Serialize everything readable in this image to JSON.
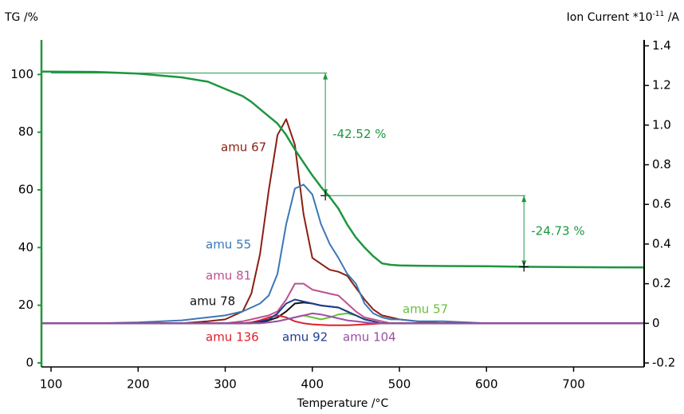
{
  "chart_data": {
    "type": "line",
    "title_left": "TG /%",
    "y2label": {
      "base": "Ion Current *10",
      "sup": "-11",
      "unit": " /A"
    },
    "xlabel": "Temperature /°C",
    "x": [
      90,
      150,
      200,
      250,
      280,
      300,
      320,
      330,
      340,
      350,
      360,
      370,
      380,
      390,
      400,
      410,
      420,
      430,
      440,
      450,
      460,
      470,
      480,
      490,
      500,
      520,
      550,
      600,
      650,
      700,
      780
    ],
    "xlim": [
      89,
      781
    ],
    "xticks": [
      100,
      200,
      300,
      400,
      500,
      600,
      700
    ],
    "ylim": [
      -1.4,
      112
    ],
    "yticks": [
      0,
      20,
      40,
      60,
      80,
      100
    ],
    "y2lim": [
      -0.22,
      1.43
    ],
    "y2ticks": [
      -0.2,
      0,
      0.2,
      0.4,
      0.6,
      0.8,
      {
        "value": 1,
        "label": "1.0"
      },
      1.2,
      1.4
    ],
    "left_axis_color": "#22963c",
    "series": [
      {
        "name": "TG",
        "color": "#1e9640",
        "axis": "y",
        "values": [
          101,
          100.9,
          100.3,
          99,
          97.5,
          95,
          92.5,
          90.5,
          88,
          85.5,
          83,
          79,
          74,
          69.5,
          65,
          61,
          57.5,
          53.5,
          48,
          43.5,
          40,
          37,
          34.5,
          34,
          33.8,
          33.7,
          33.6,
          33.5,
          33.3,
          33.2,
          33.1
        ]
      },
      {
        "name": "amu 67",
        "color": "#8b1f12",
        "axis": "y2",
        "values": [
          0,
          0,
          0,
          0,
          0.01,
          0.02,
          0.06,
          0.15,
          0.35,
          0.67,
          0.95,
          1.03,
          0.9,
          0.55,
          0.33,
          0.3,
          0.27,
          0.26,
          0.24,
          0.18,
          0.12,
          0.07,
          0.04,
          0.03,
          0.02,
          0.01,
          0,
          0,
          0,
          0,
          0
        ]
      },
      {
        "name": "amu 55",
        "color": "#3a78b5",
        "axis": "y2",
        "values": [
          0,
          0,
          0.005,
          0.015,
          0.03,
          0.04,
          0.06,
          0.08,
          0.1,
          0.14,
          0.25,
          0.5,
          0.68,
          0.7,
          0.65,
          0.5,
          0.4,
          0.33,
          0.25,
          0.2,
          0.1,
          0.05,
          0.03,
          0.02,
          0.02,
          0.01,
          0.01,
          0,
          0,
          0,
          0
        ]
      },
      {
        "name": "amu 81",
        "color": "#c0508f",
        "axis": "y2",
        "values": [
          0,
          0,
          0,
          0,
          0,
          0,
          0.01,
          0.02,
          0.03,
          0.04,
          0.06,
          0.12,
          0.2,
          0.2,
          0.17,
          0.16,
          0.15,
          0.14,
          0.1,
          0.06,
          0.03,
          0.02,
          0.01,
          0,
          0,
          0,
          0,
          0,
          0,
          0,
          0
        ]
      },
      {
        "name": "amu 78",
        "color": "#111111",
        "axis": "y2",
        "values": [
          0,
          0,
          0,
          0,
          0,
          0,
          0,
          0,
          0.005,
          0.015,
          0.03,
          0.06,
          0.1,
          0.105,
          0.1,
          0.09,
          0.085,
          0.08,
          0.06,
          0.04,
          0.02,
          0.01,
          0,
          0,
          0,
          0,
          0,
          0,
          0,
          0,
          0
        ]
      },
      {
        "name": "amu 57",
        "color": "#6abf3c",
        "axis": "y2",
        "values": [
          0,
          0,
          0,
          0,
          0,
          0,
          0,
          0,
          0,
          0.005,
          0.01,
          0.02,
          0.03,
          0.04,
          0.03,
          0.02,
          0.03,
          0.045,
          0.05,
          0.04,
          0.02,
          0.01,
          0,
          0,
          0,
          0,
          0,
          0,
          0,
          0,
          0
        ]
      },
      {
        "name": "amu 136",
        "color": "#e0202a",
        "axis": "y2",
        "values": [
          0,
          0,
          0,
          0,
          0,
          0,
          0,
          0.005,
          0.015,
          0.03,
          0.04,
          0.03,
          0.01,
          0,
          -0.005,
          -0.008,
          -0.01,
          -0.01,
          -0.01,
          -0.008,
          -0.005,
          -0.003,
          0,
          0,
          0,
          0,
          0,
          0,
          0,
          0,
          0
        ]
      },
      {
        "name": "amu 92",
        "color": "#1f3d8f",
        "axis": "y2",
        "values": [
          0,
          0,
          0,
          0,
          0,
          0,
          0,
          0,
          0.01,
          0.02,
          0.05,
          0.1,
          0.12,
          0.11,
          0.1,
          0.09,
          0.085,
          0.08,
          0.06,
          0.04,
          0.02,
          0.01,
          0,
          0,
          0,
          0,
          0,
          0,
          0,
          0,
          0
        ]
      },
      {
        "name": "amu 104",
        "color": "#9a4fa5",
        "axis": "y2",
        "values": [
          0,
          0,
          0,
          0,
          0,
          0,
          0,
          0,
          0,
          0.005,
          0.01,
          0.02,
          0.03,
          0.04,
          0.05,
          0.045,
          0.035,
          0.025,
          0.015,
          0.01,
          0.005,
          0,
          0,
          0,
          0,
          0,
          0,
          0,
          0,
          0,
          0
        ]
      }
    ],
    "steps": [
      {
        "label": "-42.52 %",
        "xstart": 100,
        "x": 415,
        "from": 100.5,
        "to": 58
      },
      {
        "label": "-24.73 %",
        "xstart": 415,
        "x": 643,
        "from": 58,
        "to": 33.3
      }
    ]
  }
}
